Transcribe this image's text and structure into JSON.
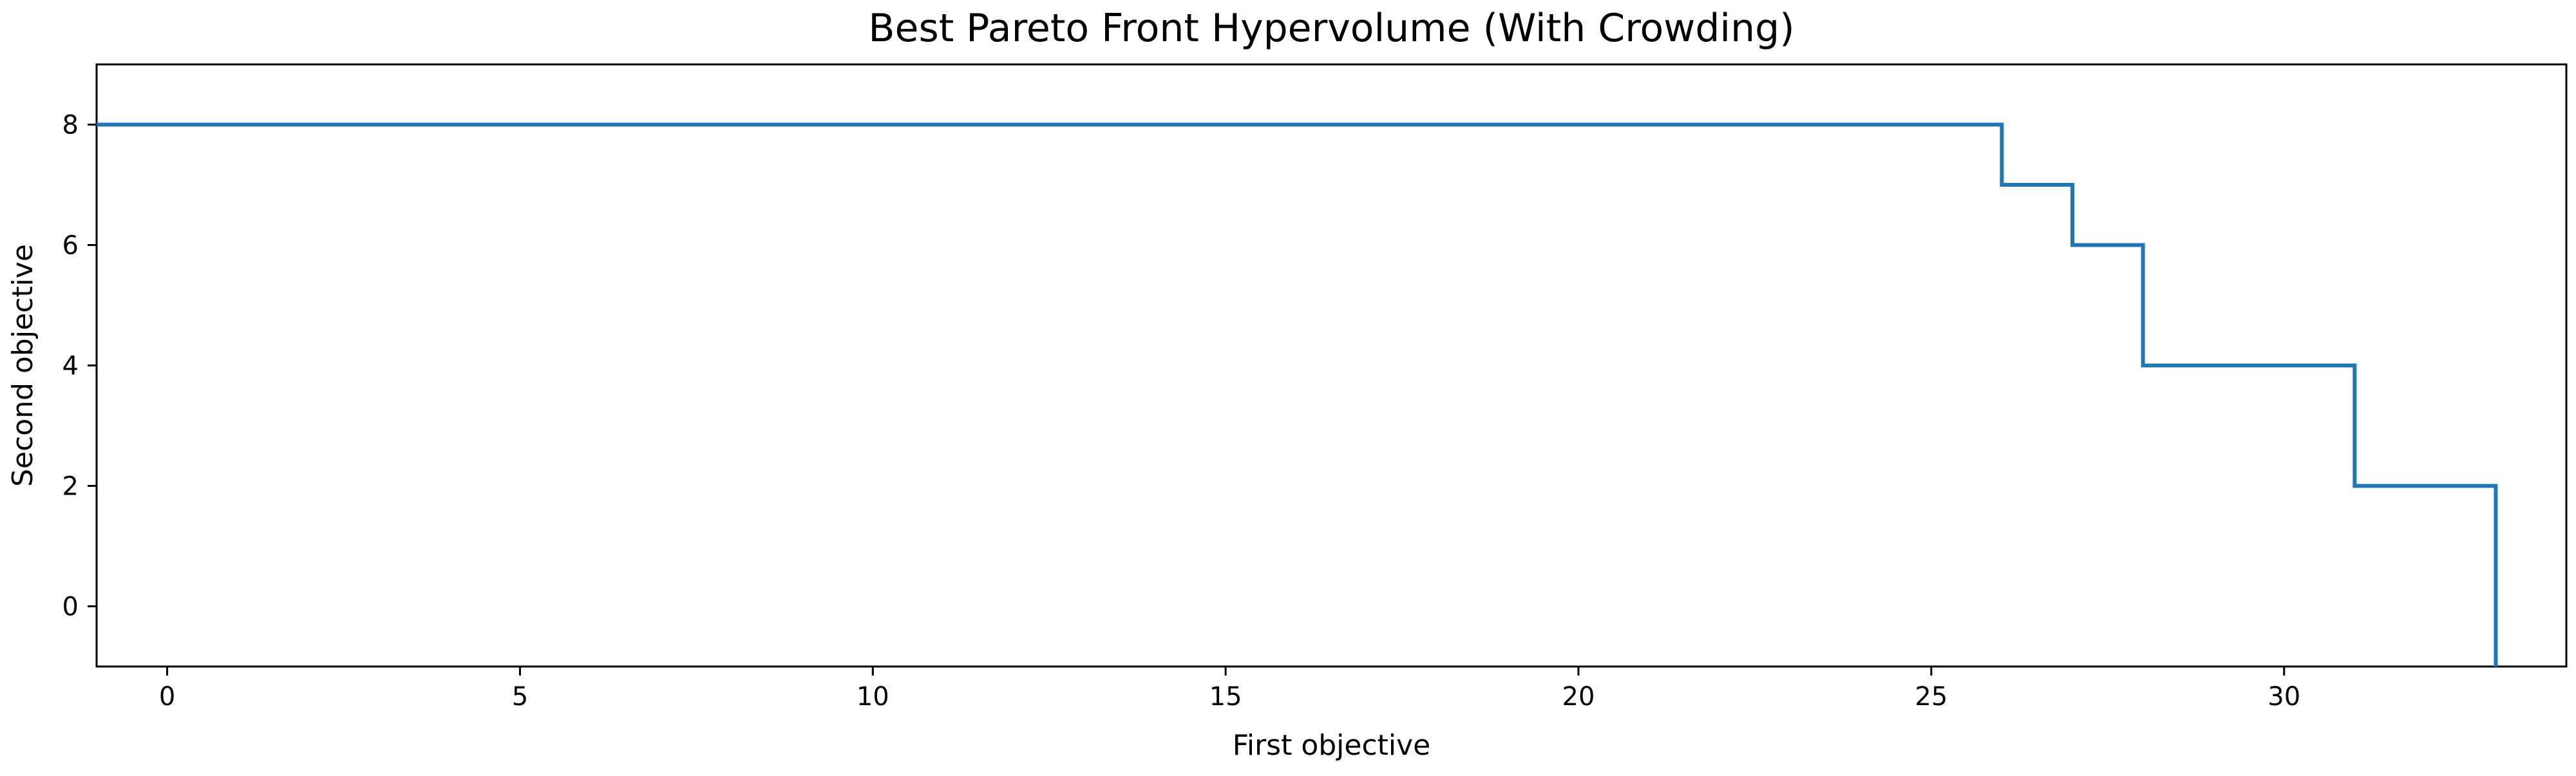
{
  "chart_data": {
    "type": "line",
    "drawstyle": "steps-post",
    "title": "Best Pareto Front Hypervolume (With Crowding)",
    "xlabel": "First objective",
    "ylabel": "Second objective",
    "xlim": [
      -1,
      34
    ],
    "ylim": [
      -1,
      9
    ],
    "xticks": [
      0,
      5,
      10,
      15,
      20,
      25,
      30
    ],
    "yticks": [
      0,
      2,
      4,
      6,
      8
    ],
    "grid": false,
    "line_color": "#1f77b4",
    "series": [
      {
        "x": [
          -1,
          26,
          27,
          28,
          31,
          33,
          33
        ],
        "y": [
          8,
          7,
          6,
          4,
          2,
          -1,
          -1
        ]
      }
    ]
  }
}
